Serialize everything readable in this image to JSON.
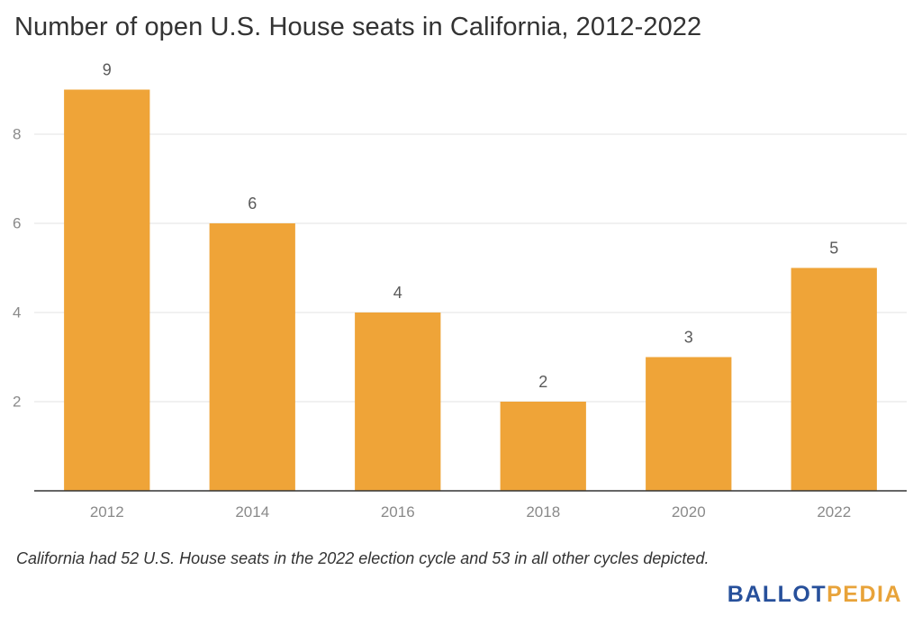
{
  "title": "Number of open U.S. House seats in California, 2012-2022",
  "footnote": "California had 52 U.S. House seats in the 2022 election cycle and 53 in all other cycles depicted.",
  "logo": {
    "part1": "BALLOT",
    "part2": "PEDIA"
  },
  "colors": {
    "bar": "#efa438",
    "grid": "#e3e3e3",
    "axis": "#333333"
  },
  "chart_data": {
    "type": "bar",
    "title": "Number of open U.S. House seats in California, 2012-2022",
    "xlabel": "",
    "ylabel": "",
    "categories": [
      "2012",
      "2014",
      "2016",
      "2018",
      "2020",
      "2022"
    ],
    "values": [
      9,
      6,
      4,
      2,
      3,
      5
    ],
    "ylim": [
      0,
      10
    ],
    "yticks": [
      2,
      4,
      6,
      8
    ],
    "grid": true,
    "data_labels": true
  }
}
